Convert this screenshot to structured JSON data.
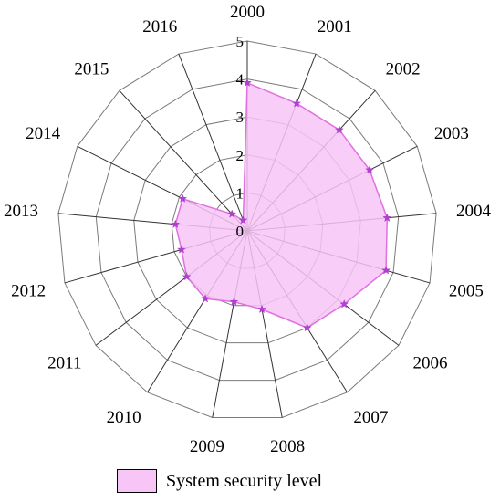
{
  "chart_data": {
    "type": "radar",
    "categories": [
      "2000",
      "2001",
      "2002",
      "2003",
      "2004",
      "2005",
      "2006",
      "2007",
      "2008",
      "2009",
      "2010",
      "2011",
      "2012",
      "2013",
      "2014",
      "2015",
      "2016"
    ],
    "series": [
      {
        "name": "System security level",
        "values": [
          3.9,
          3.6,
          3.6,
          3.6,
          3.7,
          3.8,
          3.2,
          3.0,
          2.1,
          1.9,
          2.1,
          2.0,
          1.8,
          1.9,
          1.9,
          0.6,
          0.3
        ]
      }
    ],
    "ticks": [
      "0",
      "1",
      "2",
      "3",
      "4",
      "5"
    ],
    "rlim": [
      0,
      5
    ],
    "grid": true,
    "legend_position": "bottom",
    "colors": {
      "fill": "#f7c6f7",
      "stroke": "#e070e0",
      "marker": "#b040d0",
      "grid": "#7a7a7a"
    }
  },
  "legend": {
    "label": "System security level"
  }
}
